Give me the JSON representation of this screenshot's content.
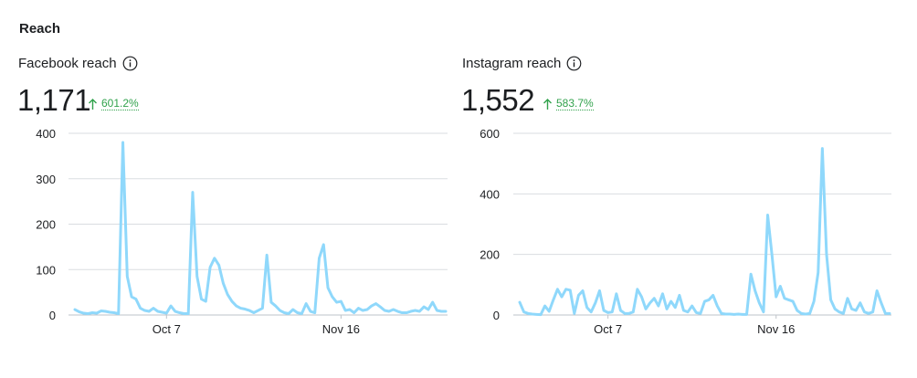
{
  "section_title": "Reach",
  "colors": {
    "line": "#8fd8fb",
    "grid": "#dadde1",
    "delta": "#31a24c",
    "axis": "#bec3c9"
  },
  "icons": {
    "info": "info-circle-icon",
    "up": "arrow-up-icon"
  },
  "panels": [
    {
      "title": "Facebook reach",
      "value": "1,171",
      "delta": "601.2%",
      "chart_data": {
        "type": "line",
        "y_ticks": [
          "400",
          "300",
          "200",
          "100",
          "0"
        ],
        "ylim": [
          0,
          400
        ],
        "x_ticks": [
          {
            "label": "Oct 7",
            "index": 21
          },
          {
            "label": "Nov 16",
            "index": 61
          }
        ],
        "values": [
          12,
          7,
          4,
          3,
          5,
          4,
          9,
          8,
          6,
          5,
          3,
          380,
          85,
          40,
          35,
          15,
          10,
          8,
          15,
          8,
          6,
          4,
          20,
          8,
          5,
          3,
          3,
          270,
          85,
          35,
          30,
          105,
          125,
          110,
          70,
          45,
          30,
          20,
          15,
          13,
          10,
          5,
          10,
          15,
          132,
          28,
          20,
          10,
          5,
          3,
          12,
          5,
          3,
          25,
          8,
          5,
          125,
          155,
          60,
          40,
          28,
          30,
          10,
          12,
          5,
          15,
          10,
          12,
          20,
          25,
          18,
          10,
          8,
          12,
          8,
          5,
          5,
          8,
          10,
          8,
          18,
          12,
          28,
          10,
          8,
          8
        ]
      }
    },
    {
      "title": "Instagram reach",
      "value": "1,552",
      "delta": "583.7%",
      "chart_data": {
        "type": "line",
        "y_ticks": [
          "600",
          "400",
          "200",
          "0"
        ],
        "ylim": [
          0,
          600
        ],
        "x_ticks": [
          {
            "label": "Oct 7",
            "index": 21
          },
          {
            "label": "Nov 16",
            "index": 61
          }
        ],
        "values": [
          42,
          10,
          5,
          3,
          2,
          1,
          30,
          12,
          50,
          85,
          60,
          85,
          82,
          5,
          65,
          80,
          25,
          10,
          40,
          80,
          15,
          8,
          10,
          70,
          15,
          5,
          5,
          10,
          85,
          60,
          20,
          40,
          55,
          30,
          70,
          20,
          45,
          25,
          65,
          15,
          10,
          30,
          8,
          5,
          45,
          50,
          65,
          30,
          5,
          3,
          3,
          2,
          3,
          2,
          2,
          135,
          80,
          40,
          10,
          330,
          200,
          60,
          95,
          55,
          50,
          45,
          15,
          5,
          3,
          5,
          45,
          140,
          550,
          200,
          50,
          20,
          10,
          5,
          55,
          20,
          15,
          40,
          10,
          5,
          10,
          80,
          40,
          5,
          5
        ]
      }
    }
  ]
}
